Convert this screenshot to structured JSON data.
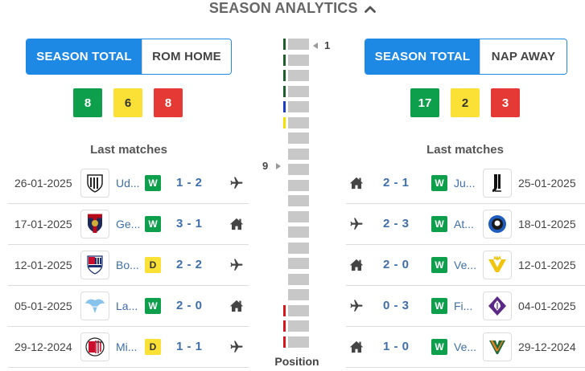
{
  "header": {
    "title": "SEASON ANALYTICS"
  },
  "left": {
    "tabs": [
      {
        "label": "SEASON TOTAL"
      },
      {
        "label": "ROM HOME"
      }
    ],
    "counts": {
      "wins": "8",
      "draws": "6",
      "losses": "8"
    },
    "last_matches_label": "Last matches",
    "matches": [
      {
        "date": "26-01-2025",
        "team": "Ud...",
        "crest": "udinese-crest",
        "result": "W",
        "score": "1 - 2",
        "venue": "away"
      },
      {
        "date": "17-01-2025",
        "team": "Ge...",
        "crest": "genoa-crest",
        "result": "W",
        "score": "3 - 1",
        "venue": "home"
      },
      {
        "date": "12-01-2025",
        "team": "Bo...",
        "crest": "bologna-crest",
        "result": "D",
        "score": "2 - 2",
        "venue": "away"
      },
      {
        "date": "05-01-2025",
        "team": "La...",
        "crest": "lazio-crest",
        "result": "W",
        "score": "2 - 0",
        "venue": "home"
      },
      {
        "date": "29-12-2024",
        "team": "Mi...",
        "crest": "milan-crest",
        "result": "D",
        "score": "1 - 1",
        "venue": "away"
      }
    ]
  },
  "right": {
    "tabs": [
      {
        "label": "SEASON TOTAL"
      },
      {
        "label": "NAP AWAY"
      }
    ],
    "counts": {
      "wins": "17",
      "draws": "2",
      "losses": "3"
    },
    "last_matches_label": "Last matches",
    "matches": [
      {
        "date": "25-01-2025",
        "team": "Ju...",
        "crest": "juventus-crest",
        "result": "W",
        "score": "2 - 1",
        "venue": "home"
      },
      {
        "date": "18-01-2025",
        "team": "At...",
        "crest": "atalanta-crest",
        "result": "W",
        "score": "2 - 3",
        "venue": "away"
      },
      {
        "date": "12-01-2025",
        "team": "Ve...",
        "crest": "verona-crest",
        "result": "W",
        "score": "2 - 0",
        "venue": "home"
      },
      {
        "date": "04-01-2025",
        "team": "Fi...",
        "crest": "fiorentina-crest",
        "result": "W",
        "score": "0 - 3",
        "venue": "away"
      },
      {
        "date": "29-12-2024",
        "team": "Ve...",
        "crest": "venezia-crest",
        "result": "W",
        "score": "1 - 0",
        "venue": "home"
      }
    ]
  },
  "standings": {
    "label": "Position",
    "total_positions": 20,
    "left_team_position": "9",
    "right_team_position": "1",
    "zones": [
      "green",
      "green",
      "green",
      "green",
      "blue",
      "yellow",
      "none",
      "none",
      "none",
      "none",
      "none",
      "none",
      "none",
      "none",
      "none",
      "none",
      "none",
      "red",
      "red",
      "red"
    ],
    "colors": {
      "green": "#1f5e2d",
      "blue": "#1a3cc7",
      "yellow": "#f5e000",
      "red": "#d8161b",
      "none": "transparent"
    }
  }
}
